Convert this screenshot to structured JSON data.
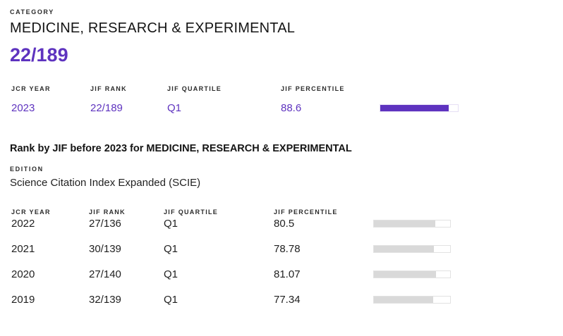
{
  "colors": {
    "accent_purple": "#5E33BF",
    "history_bar_fill": "#d9d9d9",
    "bar_track": "#ffffff",
    "bar_border": "#e2e2e2",
    "text_dark": "#1a1a1a"
  },
  "category_section": {
    "label": "CATEGORY",
    "name": "MEDICINE, RESEARCH & EXPERIMENTAL",
    "rank": "22/189"
  },
  "current_table": {
    "headers": [
      "JCR YEAR",
      "JIF RANK",
      "JIF QUARTILE",
      "JIF PERCENTILE"
    ],
    "rows": [
      {
        "year": "2023",
        "rank": "22/189",
        "quartile": "Q1",
        "percentile": "88.6",
        "percent": 88.6
      }
    ]
  },
  "history_section": {
    "title": "Rank by JIF before 2023 for MEDICINE, RESEARCH & EXPERIMENTAL",
    "edition_label": "EDITION",
    "edition": "Science Citation Index Expanded (SCIE)"
  },
  "history_table": {
    "headers": [
      "JCR YEAR",
      "JIF RANK",
      "JIF QUARTILE",
      "JIF PERCENTILE"
    ],
    "rows": [
      {
        "year": "2022",
        "rank": "27/136",
        "quartile": "Q1",
        "percentile": "80.5",
        "percent": 80.5
      },
      {
        "year": "2021",
        "rank": "30/139",
        "quartile": "Q1",
        "percentile": "78.78",
        "percent": 78.78
      },
      {
        "year": "2020",
        "rank": "27/140",
        "quartile": "Q1",
        "percentile": "81.07",
        "percent": 81.07
      },
      {
        "year": "2019",
        "rank": "32/139",
        "quartile": "Q1",
        "percentile": "77.34",
        "percent": 77.34
      }
    ]
  }
}
